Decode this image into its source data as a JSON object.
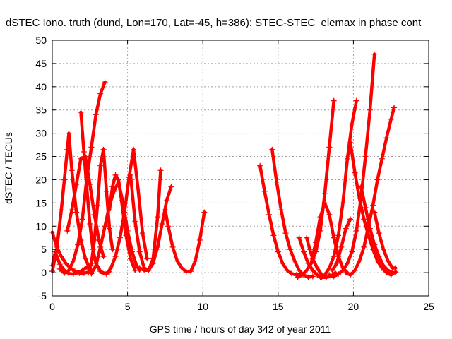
{
  "chart_data": {
    "type": "scatter",
    "title": "dSTEC Iono. truth (dund, Lon=170, Lat=-45, h=386): STEC-STEC_elemax in phase cont",
    "xlabel": "GPS time / hours of day 342 of year 2011",
    "ylabel": "dSTEC  / TECUs",
    "xlim": [
      0,
      25
    ],
    "ylim": [
      -5,
      50
    ],
    "xticks": [
      0,
      5,
      10,
      15,
      20,
      25
    ],
    "yticks": [
      -5,
      0,
      5,
      10,
      15,
      20,
      25,
      30,
      35,
      40,
      45,
      50
    ],
    "grid": true,
    "marker": "+",
    "color": "#ff0000",
    "arcs": [
      {
        "x": [
          0.0,
          0.3,
          0.6,
          0.9,
          1.2,
          1.5,
          1.8,
          2.1,
          2.4,
          2.6
        ],
        "y": [
          8.7,
          5.5,
          3.5,
          2.0,
          1.0,
          0.3,
          -0.1,
          -0.1,
          0.1,
          0.3
        ]
      },
      {
        "x": [
          0.0,
          0.3,
          0.6,
          0.8,
          1.0,
          1.1,
          1.3,
          1.6,
          1.9,
          2.2,
          2.5
        ],
        "y": [
          0.3,
          5.0,
          13.5,
          20.0,
          26.5,
          30.0,
          22.0,
          13.0,
          7.0,
          3.0,
          0.8
        ]
      },
      {
        "x": [
          0.0,
          0.2,
          0.5,
          0.8,
          1.1,
          1.4,
          1.7,
          2.0,
          2.3
        ],
        "y": [
          1.5,
          4.5,
          1.8,
          0.5,
          -0.2,
          -0.3,
          0.0,
          0.5,
          1.2
        ]
      },
      {
        "x": [
          0.5,
          0.8,
          1.1,
          1.4,
          1.7,
          2.0,
          2.3,
          2.6,
          2.9,
          3.2,
          3.5
        ],
        "y": [
          0.8,
          -0.1,
          0.5,
          2.5,
          6.0,
          11.5,
          20.5,
          27.0,
          34.0,
          38.5,
          41.0
        ]
      },
      {
        "x": [
          1.0,
          1.3,
          1.6,
          1.9,
          2.2,
          2.5,
          2.8,
          3.1,
          3.4
        ],
        "y": [
          9.0,
          13.5,
          19.0,
          24.5,
          25.0,
          19.0,
          12.5,
          7.0,
          3.5
        ]
      },
      {
        "x": [
          1.9,
          2.1,
          2.3,
          2.5,
          2.7,
          2.9,
          3.2,
          3.5,
          3.8
        ],
        "y": [
          34.5,
          26.0,
          18.0,
          10.5,
          5.0,
          2.0,
          0.3,
          -0.2,
          0.2
        ]
      },
      {
        "x": [
          2.4,
          2.6,
          2.8,
          3.0,
          3.2,
          3.4,
          3.6,
          3.8,
          4.0
        ],
        "y": [
          0.0,
          2.0,
          7.0,
          14.5,
          23.0,
          26.5,
          17.5,
          9.5,
          5.0
        ]
      },
      {
        "x": [
          2.6,
          2.9,
          3.2,
          3.5,
          3.8,
          4.1,
          4.4,
          4.7,
          5.0,
          5.3,
          5.6,
          5.8
        ],
        "y": [
          -0.2,
          1.5,
          5.5,
          10.0,
          14.5,
          17.5,
          19.5,
          15.0,
          9.0,
          4.5,
          1.5,
          0.5
        ]
      },
      {
        "x": [
          3.3,
          3.6,
          3.9,
          4.2,
          4.5,
          4.8,
          5.1,
          5.4,
          5.7,
          6.0,
          6.3
        ],
        "y": [
          0.0,
          -0.3,
          1.0,
          3.5,
          7.5,
          13.0,
          20.5,
          26.5,
          18.0,
          8.5,
          3.0
        ]
      },
      {
        "x": [
          3.8,
          4.0,
          4.2,
          4.4,
          4.6,
          4.9,
          5.2,
          5.5
        ],
        "y": [
          13.5,
          18.5,
          21.0,
          20.0,
          15.5,
          8.0,
          3.0,
          0.5
        ]
      },
      {
        "x": [
          5.2,
          5.5,
          5.8,
          6.1,
          6.4,
          6.7,
          7.0,
          7.2
        ],
        "y": [
          21.0,
          11.0,
          4.5,
          1.0,
          0.5,
          3.0,
          12.0,
          22.0
        ]
      },
      {
        "x": [
          5.8,
          6.1,
          6.4,
          6.7,
          7.0,
          7.3,
          7.6,
          7.9
        ],
        "y": [
          1.0,
          0.5,
          0.5,
          2.0,
          5.5,
          10.5,
          15.5,
          18.5
        ]
      },
      {
        "x": [
          7.5,
          7.7,
          8.0,
          8.3,
          8.6,
          8.9,
          9.2,
          9.5,
          9.8,
          10.1
        ],
        "y": [
          13.5,
          10.0,
          5.5,
          2.5,
          1.0,
          0.2,
          0.3,
          2.5,
          7.0,
          13.0
        ]
      },
      {
        "x": [
          13.8,
          14.1,
          14.4,
          14.7,
          15.0,
          15.3,
          15.6,
          15.9,
          16.2,
          16.5
        ],
        "y": [
          23.0,
          17.5,
          12.5,
          8.0,
          4.5,
          2.0,
          0.5,
          -0.2,
          -0.5,
          -0.3
        ]
      },
      {
        "x": [
          14.6,
          14.9,
          15.2,
          15.5,
          15.8,
          16.1,
          16.4,
          16.7,
          17.0,
          17.3
        ],
        "y": [
          26.5,
          19.5,
          13.5,
          8.5,
          5.0,
          2.5,
          0.5,
          -0.5,
          -1.0,
          -0.8
        ]
      },
      {
        "x": [
          16.3,
          16.6,
          16.9,
          17.2,
          17.5,
          17.8,
          18.1,
          18.4,
          18.7
        ],
        "y": [
          -1.0,
          -0.5,
          0.5,
          2.0,
          4.5,
          9.0,
          17.0,
          27.0,
          37.0
        ]
      },
      {
        "x": [
          16.4,
          16.7,
          17.0,
          17.3,
          17.6,
          17.9,
          18.2
        ],
        "y": [
          7.5,
          4.5,
          2.0,
          0.5,
          -0.5,
          -1.0,
          -1.0
        ]
      },
      {
        "x": [
          16.9,
          17.1,
          17.3,
          17.6,
          17.9,
          18.2,
          18.5,
          18.8
        ],
        "y": [
          7.5,
          5.0,
          3.0,
          1.0,
          -0.5,
          -1.0,
          -0.8,
          0.0
        ]
      },
      {
        "x": [
          17.2,
          17.5,
          17.8,
          18.1,
          18.4,
          18.7,
          19.0,
          19.3,
          19.6
        ],
        "y": [
          2.0,
          6.5,
          12.0,
          15.0,
          12.5,
          7.5,
          3.5,
          1.0,
          0.0
        ]
      },
      {
        "x": [
          17.8,
          18.1,
          18.4,
          18.7,
          19.0,
          19.3,
          19.6,
          19.9,
          20.2
        ],
        "y": [
          -1.0,
          -0.5,
          1.0,
          3.5,
          8.0,
          15.0,
          24.5,
          32.0,
          37.0
        ]
      },
      {
        "x": [
          18.4,
          18.7,
          19.0,
          19.3,
          19.6,
          19.9,
          20.2,
          20.5,
          20.8,
          21.1,
          21.4
        ],
        "y": [
          -0.5,
          -0.8,
          -0.3,
          0.5,
          2.0,
          4.5,
          9.0,
          16.0,
          25.0,
          35.0,
          47.0
        ]
      },
      {
        "x": [
          18.6,
          18.9,
          19.2,
          19.5,
          19.8
        ],
        "y": [
          0.5,
          2.0,
          5.5,
          9.5,
          11.5
        ]
      },
      {
        "x": [
          19.5,
          19.8,
          20.1,
          20.4,
          20.7,
          21.0,
          21.3,
          21.6,
          21.9,
          22.2,
          22.5,
          22.7
        ],
        "y": [
          0.0,
          -0.5,
          0.5,
          2.5,
          5.5,
          10.0,
          14.5,
          20.0,
          24.5,
          29.0,
          33.0,
          35.5
        ]
      },
      {
        "x": [
          19.8,
          20.1,
          20.4,
          20.7,
          21.0,
          21.3,
          21.6,
          21.9,
          22.2,
          22.5,
          22.8
        ],
        "y": [
          28.0,
          21.5,
          16.0,
          11.5,
          8.0,
          5.0,
          2.5,
          1.0,
          0.0,
          -0.5,
          0.2
        ]
      },
      {
        "x": [
          20.5,
          20.8,
          21.1,
          21.4,
          21.7,
          22.0,
          22.3,
          22.6,
          22.8
        ],
        "y": [
          18.5,
          14.0,
          9.5,
          6.0,
          3.5,
          1.5,
          0.5,
          0.0,
          0.0
        ]
      },
      {
        "x": [
          21.4,
          21.7,
          22.0,
          22.3,
          22.6,
          22.8
        ],
        "y": [
          13.0,
          8.5,
          5.0,
          2.5,
          1.0,
          1.0
        ]
      }
    ]
  }
}
